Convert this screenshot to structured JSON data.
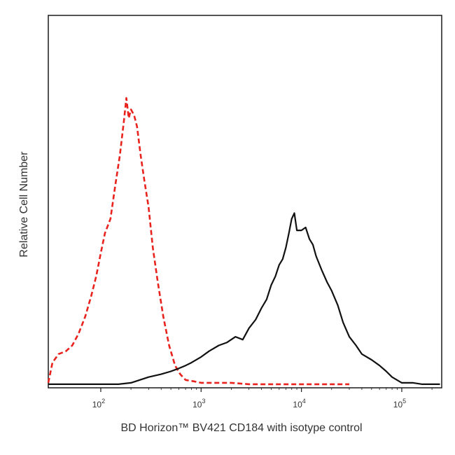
{
  "chart_data": {
    "type": "line",
    "title": "",
    "xlabel": "BD Horizon™ BV421 CD184 with isotype control",
    "ylabel": "Relative Cell Number",
    "x_scale": "log",
    "xlim": [
      30,
      250000
    ],
    "ylim": [
      0,
      100
    ],
    "x_ticks": [
      {
        "value": 100,
        "label": "10^2"
      },
      {
        "value": 1000,
        "label": "10^3"
      },
      {
        "value": 10000,
        "label": "10^4"
      },
      {
        "value": 100000,
        "label": "10^5"
      }
    ],
    "grid": false,
    "legend": "none",
    "series": [
      {
        "color": "#e8231e",
        "line_style": "dashed",
        "x": [
          30,
          33,
          38,
          45,
          52,
          60,
          70,
          80,
          90,
          100,
          110,
          125,
          140,
          155,
          170,
          180,
          190,
          200,
          215,
          230,
          250,
          270,
          300,
          330,
          370,
          420,
          480,
          550,
          620,
          700,
          850,
          1000,
          1500,
          2000,
          3000,
          5000,
          10000,
          20000,
          30000
        ],
        "y": [
          1,
          8,
          11,
          12,
          14,
          18,
          24,
          31,
          38,
          46,
          53,
          58,
          70,
          80,
          92,
          100,
          93,
          96,
          94,
          90,
          80,
          72,
          62,
          48,
          36,
          24,
          14,
          7,
          4,
          2,
          1.5,
          1,
          1,
          1,
          0.5,
          0.5,
          0.5,
          0.5,
          0.5
        ]
      },
      {
        "color": "#111111",
        "line_style": "solid",
        "x": [
          30,
          50,
          100,
          150,
          200,
          300,
          400,
          500,
          600,
          700,
          800,
          1000,
          1200,
          1500,
          1800,
          2200,
          2600,
          3000,
          3500,
          4000,
          4500,
          5000,
          5500,
          6000,
          6500,
          7000,
          7500,
          8000,
          8500,
          9000,
          10000,
          11000,
          12000,
          13000,
          14000,
          16000,
          18000,
          20000,
          23000,
          26000,
          30000,
          35000,
          40000,
          50000,
          60000,
          70000,
          80000,
          100000,
          130000,
          160000,
          200000,
          240000
        ],
        "y": [
          0.5,
          0.5,
          0.5,
          0.5,
          1,
          3,
          4,
          5,
          6,
          7,
          8,
          10,
          12,
          14,
          15,
          17,
          16,
          20,
          23,
          27,
          30,
          35,
          38,
          42,
          44,
          48,
          53,
          58,
          60,
          54,
          54,
          55,
          51,
          49,
          45,
          40,
          36,
          33,
          28,
          22,
          17,
          14,
          11,
          9,
          7,
          5,
          3,
          1,
          1,
          0.5,
          0.5,
          0.5
        ]
      }
    ]
  }
}
